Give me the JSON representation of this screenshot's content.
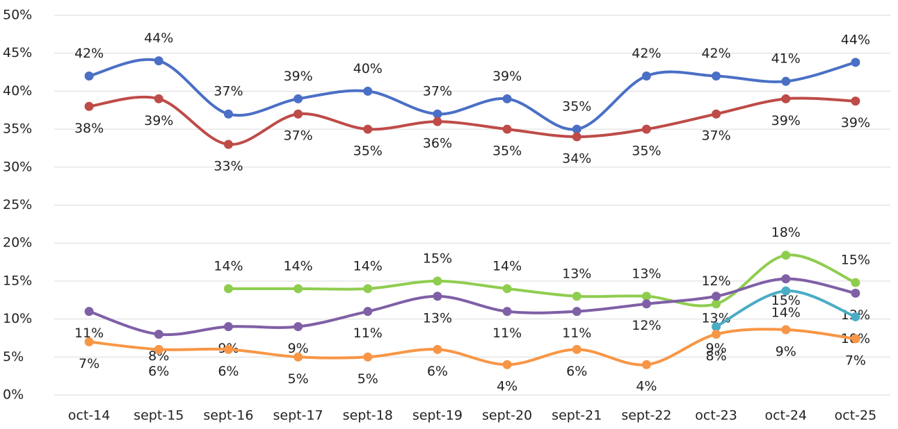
{
  "chart_data": {
    "type": "line",
    "categories": [
      "oct-14",
      "sept-15",
      "sept-16",
      "sept-17",
      "sept-18",
      "sept-19",
      "sept-20",
      "sept-21",
      "sept-22",
      "oct-23",
      "oct-24",
      "oct-25"
    ],
    "ylim": [
      0,
      50
    ],
    "yticks": [
      {
        "value": 0,
        "label": "0%"
      },
      {
        "value": 5,
        "label": "5%"
      },
      {
        "value": 10,
        "label": "10%"
      },
      {
        "value": 15,
        "label": "15%"
      },
      {
        "value": 20,
        "label": "20%"
      },
      {
        "value": 25,
        "label": "25%"
      },
      {
        "value": 30,
        "label": "30%"
      },
      {
        "value": 35,
        "label": "35%"
      },
      {
        "value": 40,
        "label": "40%"
      },
      {
        "value": 45,
        "label": "45%"
      },
      {
        "value": 50,
        "label": "50%"
      }
    ],
    "grid": true,
    "series": [
      {
        "color": "#4a6fc5",
        "values": [
          42,
          44,
          37,
          39,
          40,
          37,
          39,
          35,
          42,
          42,
          41.3,
          43.8
        ],
        "value_labels": [
          "42%",
          "44%",
          "37%",
          "39%",
          "40%",
          "37%",
          "39%",
          "35%",
          "42%",
          "42%",
          "41%",
          "44%"
        ]
      },
      {
        "color": "#be4b48",
        "values": [
          38,
          39,
          33,
          37,
          35,
          36,
          35,
          34,
          35,
          37,
          39,
          38.7
        ],
        "value_labels": [
          "38%",
          "39%",
          "33%",
          "37%",
          "35%",
          "36%",
          "35%",
          "34%",
          "35%",
          "37%",
          "39%",
          "39%"
        ]
      },
      {
        "color": "#8fcd4f",
        "values": [
          null,
          null,
          14,
          14,
          14,
          15,
          14,
          13,
          13,
          12,
          18.4,
          14.8
        ],
        "value_labels": [
          null,
          null,
          "14%",
          "14%",
          "14%",
          "15%",
          "14%",
          "13%",
          "13%",
          "12%",
          "18%",
          "15%"
        ]
      },
      {
        "color": "#7f5fa6",
        "values": [
          11,
          8,
          9,
          9,
          11,
          13,
          11,
          11,
          12,
          13,
          15.3,
          13.4
        ],
        "value_labels": [
          "11%",
          "8%",
          "9%",
          "9%",
          "11%",
          "13%",
          "11%",
          "11%",
          "12%",
          "13%",
          "15%",
          "13%"
        ]
      },
      {
        "color": "#4aacc5",
        "values": [
          null,
          null,
          null,
          null,
          null,
          null,
          null,
          null,
          null,
          9,
          13.7,
          10.3
        ],
        "value_labels": [
          null,
          null,
          null,
          null,
          null,
          null,
          null,
          null,
          null,
          "9%",
          "14%",
          "10%"
        ]
      },
      {
        "color": "#f79646",
        "values": [
          7,
          6,
          6,
          5,
          5,
          6,
          4,
          6,
          4,
          8,
          8.6,
          7.4
        ],
        "value_labels": [
          "7%",
          "6%",
          "6%",
          "5%",
          "5%",
          "6%",
          "4%",
          "6%",
          "4%",
          "8%",
          "9%",
          "7%"
        ]
      }
    ]
  }
}
